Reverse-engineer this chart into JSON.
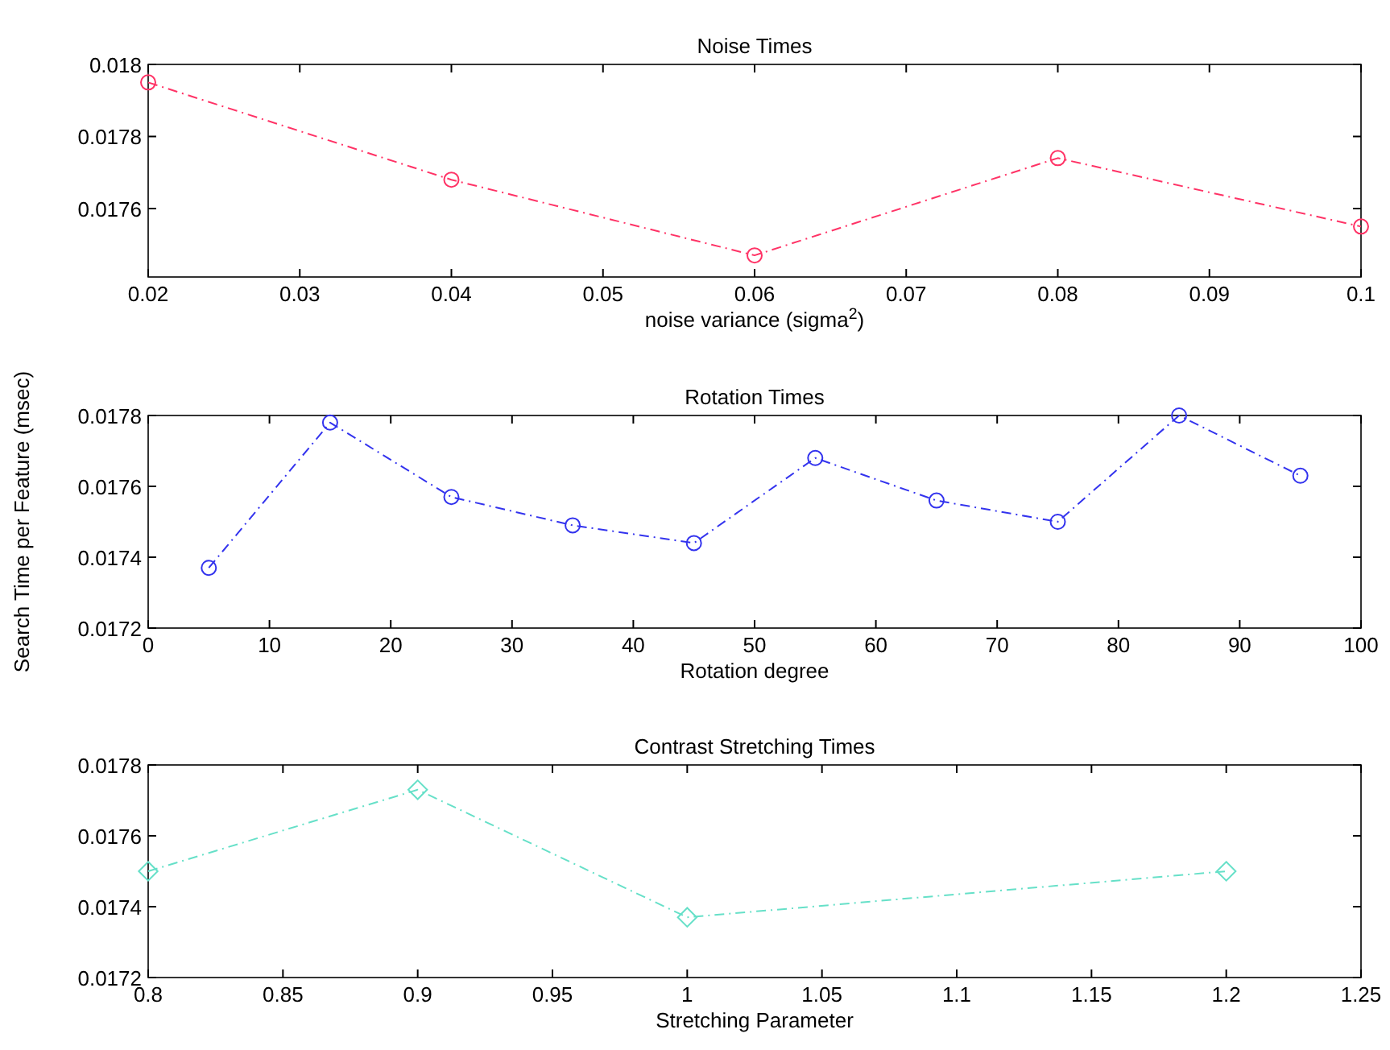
{
  "chart_data": [
    {
      "type": "line",
      "title": "Noise Times",
      "xlabel": "noise variance (sigma$^{2}$)",
      "x": [
        0.02,
        0.04,
        0.06,
        0.08,
        0.1
      ],
      "xlim": [
        0.02,
        0.1
      ],
      "xticks": [
        0.02,
        0.03,
        0.04,
        0.05,
        0.06,
        0.07,
        0.08,
        0.09,
        0.1
      ],
      "ylim": [
        0.01741,
        0.018
      ],
      "yticks": [
        0.0176,
        0.0178,
        0.018
      ],
      "series": [
        {
          "color": "#ff3366",
          "values": [
            0.01795,
            0.01768,
            0.01747,
            0.01774,
            0.01755
          ]
        }
      ],
      "marker": "circle",
      "line_style": "dashed",
      "grid": false
    },
    {
      "type": "line",
      "title": "Rotation Times",
      "xlabel": "Rotation degree",
      "ylabel": "Search Time per Feature (msec)",
      "x": [
        5,
        15,
        25,
        35,
        45,
        55,
        65,
        75,
        85,
        95
      ],
      "xlim": [
        0,
        100
      ],
      "xticks": [
        0,
        10,
        20,
        30,
        40,
        50,
        60,
        70,
        80,
        90,
        100
      ],
      "ylim": [
        0.0172,
        0.0178
      ],
      "yticks": [
        0.0172,
        0.0174,
        0.0176,
        0.0178
      ],
      "series": [
        {
          "color": "#3333ee",
          "values": [
            0.01737,
            0.01778,
            0.01757,
            0.01749,
            0.01744,
            0.01768,
            0.01756,
            0.0175,
            0.0178,
            0.01763
          ]
        }
      ],
      "marker": "circle",
      "line_style": "dashed",
      "grid": false
    },
    {
      "type": "line",
      "title": "Contrast Stretching Times",
      "xlabel": "Stretching Parameter",
      "x": [
        0.8,
        0.9,
        1.0,
        1.2
      ],
      "xlim": [
        0.8,
        1.25
      ],
      "xticks": [
        0.8,
        0.85,
        0.9,
        0.95,
        1,
        1.05,
        1.1,
        1.15,
        1.2,
        1.25
      ],
      "ylim": [
        0.0172,
        0.0178
      ],
      "yticks": [
        0.0172,
        0.0174,
        0.0176,
        0.0178
      ],
      "series": [
        {
          "color": "#66e0c8",
          "values": [
            0.0175,
            0.01773,
            0.01737,
            0.0175
          ]
        }
      ],
      "marker": "diamond",
      "line_style": "dashed",
      "grid": false
    }
  ]
}
